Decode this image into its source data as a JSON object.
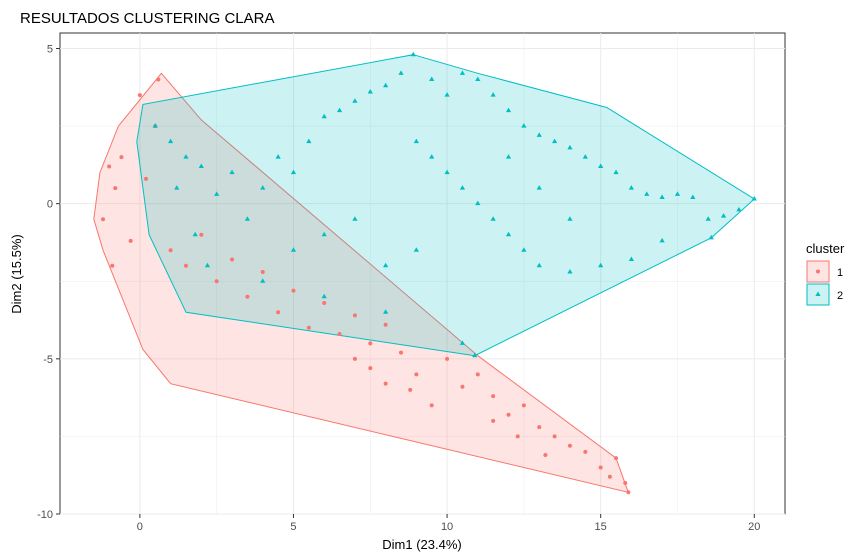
{
  "chart_data": {
    "type": "scatter",
    "title": "RESULTADOS CLUSTERING CLARA",
    "xlabel": "Dim1 (23.4%)",
    "ylabel": "Dim2 (15.5%)",
    "xlim": [
      -2.6,
      21.0
    ],
    "ylim": [
      -10.0,
      5.5
    ],
    "x_ticks": [
      0,
      5,
      10,
      15,
      20
    ],
    "y_ticks": [
      -10,
      -5,
      0,
      5
    ],
    "grid": true,
    "legend": {
      "title": "cluster",
      "position": "right"
    },
    "series": [
      {
        "name": "1",
        "color": "#F8766D",
        "marker": "circle",
        "hull": [
          [
            0.7,
            4.2
          ],
          [
            2.0,
            2.7
          ],
          [
            11.0,
            -4.9
          ],
          [
            15.5,
            -8.2
          ],
          [
            15.9,
            -9.3
          ],
          [
            1.0,
            -5.8
          ],
          [
            0.1,
            -4.7
          ],
          [
            -1.2,
            -1.5
          ],
          [
            -1.5,
            -0.5
          ],
          [
            -1.3,
            1.0
          ],
          [
            -0.7,
            2.5
          ]
        ],
        "points": [
          [
            -0.8,
            0.5
          ],
          [
            -1.2,
            -0.5
          ],
          [
            -0.6,
            1.5
          ],
          [
            -0.3,
            -1.2
          ],
          [
            0.2,
            0.8
          ],
          [
            0.5,
            2.5
          ],
          [
            -1.0,
            1.2
          ],
          [
            -0.9,
            -2.0
          ],
          [
            0.0,
            3.5
          ],
          [
            0.6,
            4.0
          ],
          [
            1.0,
            -1.5
          ],
          [
            1.5,
            -2.0
          ],
          [
            2.0,
            -1.0
          ],
          [
            2.5,
            -2.5
          ],
          [
            3.0,
            -1.8
          ],
          [
            3.5,
            -3.0
          ],
          [
            4.0,
            -2.2
          ],
          [
            4.5,
            -3.5
          ],
          [
            5.0,
            -2.8
          ],
          [
            5.5,
            -4.0
          ],
          [
            6.0,
            -3.2
          ],
          [
            6.5,
            -4.2
          ],
          [
            7.0,
            -3.6
          ],
          [
            7.5,
            -4.5
          ],
          [
            8.0,
            -3.9
          ],
          [
            7.0,
            -5.0
          ],
          [
            7.5,
            -5.3
          ],
          [
            8.0,
            -5.8
          ],
          [
            8.5,
            -4.8
          ],
          [
            9.0,
            -5.5
          ],
          [
            10.0,
            -5.0
          ],
          [
            10.5,
            -5.9
          ],
          [
            11.0,
            -5.5
          ],
          [
            11.5,
            -6.2
          ],
          [
            12.0,
            -6.8
          ],
          [
            12.5,
            -6.5
          ],
          [
            13.0,
            -7.2
          ],
          [
            13.5,
            -7.5
          ],
          [
            14.0,
            -7.8
          ],
          [
            14.5,
            -8.0
          ],
          [
            15.0,
            -8.5
          ],
          [
            15.3,
            -8.8
          ],
          [
            15.5,
            -8.2
          ],
          [
            15.8,
            -9.0
          ],
          [
            15.9,
            -9.3
          ],
          [
            11.5,
            -7.0
          ],
          [
            12.3,
            -7.5
          ],
          [
            13.2,
            -8.1
          ],
          [
            9.5,
            -6.5
          ],
          [
            8.8,
            -6.0
          ]
        ]
      },
      {
        "name": "2",
        "color": "#00BFC4",
        "marker": "triangle",
        "hull": [
          [
            8.9,
            4.8
          ],
          [
            11.0,
            4.2
          ],
          [
            15.2,
            3.1
          ],
          [
            20.0,
            0.15
          ],
          [
            18.6,
            -1.1
          ],
          [
            10.9,
            -4.9
          ],
          [
            1.5,
            -3.5
          ],
          [
            0.3,
            -1.0
          ],
          [
            -0.1,
            2.0
          ],
          [
            0.1,
            3.2
          ]
        ],
        "points": [
          [
            0.5,
            2.5
          ],
          [
            1.0,
            2.0
          ],
          [
            1.5,
            1.5
          ],
          [
            2.0,
            1.2
          ],
          [
            1.2,
            0.5
          ],
          [
            2.5,
            0.3
          ],
          [
            3.0,
            1.0
          ],
          [
            3.5,
            -0.5
          ],
          [
            1.8,
            -1.0
          ],
          [
            2.2,
            -2.0
          ],
          [
            4.0,
            0.5
          ],
          [
            4.5,
            1.5
          ],
          [
            5.0,
            1.0
          ],
          [
            5.5,
            2.0
          ],
          [
            6.0,
            2.8
          ],
          [
            6.5,
            3.0
          ],
          [
            7.0,
            3.3
          ],
          [
            7.5,
            3.6
          ],
          [
            8.0,
            3.8
          ],
          [
            8.5,
            4.2
          ],
          [
            8.9,
            4.8
          ],
          [
            9.5,
            4.0
          ],
          [
            10.0,
            3.5
          ],
          [
            10.5,
            4.2
          ],
          [
            11.0,
            4.0
          ],
          [
            11.5,
            3.5
          ],
          [
            12.0,
            3.0
          ],
          [
            12.5,
            2.5
          ],
          [
            13.0,
            2.2
          ],
          [
            13.5,
            2.0
          ],
          [
            14.0,
            1.8
          ],
          [
            14.5,
            1.5
          ],
          [
            15.0,
            1.2
          ],
          [
            15.5,
            1.0
          ],
          [
            16.0,
            0.5
          ],
          [
            16.5,
            0.3
          ],
          [
            17.0,
            0.2
          ],
          [
            17.5,
            0.3
          ],
          [
            18.0,
            0.2
          ],
          [
            18.5,
            -0.5
          ],
          [
            18.6,
            -1.1
          ],
          [
            19.0,
            -0.4
          ],
          [
            19.5,
            -0.2
          ],
          [
            20.0,
            0.15
          ],
          [
            9.0,
            2.0
          ],
          [
            9.5,
            1.5
          ],
          [
            10.0,
            1.0
          ],
          [
            10.5,
            0.5
          ],
          [
            11.0,
            0.0
          ],
          [
            11.5,
            -0.5
          ],
          [
            12.0,
            -1.0
          ],
          [
            12.5,
            -1.5
          ],
          [
            13.0,
            -2.0
          ],
          [
            14.0,
            -2.2
          ],
          [
            15.0,
            -2.0
          ],
          [
            16.0,
            -1.8
          ],
          [
            17.0,
            -1.2
          ],
          [
            9.0,
            -1.5
          ],
          [
            8.0,
            -2.0
          ],
          [
            7.0,
            -0.5
          ],
          [
            6.0,
            -1.0
          ],
          [
            5.0,
            -1.5
          ],
          [
            4.0,
            -2.5
          ],
          [
            6.0,
            -3.0
          ],
          [
            8.0,
            -3.5
          ],
          [
            10.5,
            -4.5
          ],
          [
            10.9,
            -4.9
          ],
          [
            12.0,
            1.5
          ],
          [
            13.0,
            0.5
          ],
          [
            14.0,
            -0.5
          ]
        ]
      }
    ]
  }
}
